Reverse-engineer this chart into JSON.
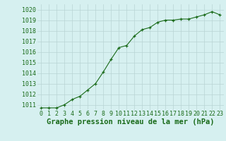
{
  "x": [
    0,
    1,
    2,
    3,
    4,
    5,
    6,
    7,
    8,
    9,
    10,
    11,
    12,
    13,
    14,
    15,
    16,
    17,
    18,
    19,
    20,
    21,
    22,
    23
  ],
  "y": [
    1010.7,
    1010.7,
    1010.7,
    1011.0,
    1011.5,
    1011.8,
    1012.4,
    1013.0,
    1014.1,
    1015.3,
    1016.4,
    1016.6,
    1017.5,
    1018.1,
    1018.3,
    1018.8,
    1019.0,
    1019.0,
    1019.1,
    1019.1,
    1019.3,
    1019.5,
    1019.8,
    1019.5
  ],
  "line_color": "#1a6b1a",
  "marker_color": "#1a6b1a",
  "bg_color": "#d6f0f0",
  "grid_color": "#b8d4d4",
  "xlabel": "Graphe pression niveau de la mer (hPa)",
  "xlabel_color": "#1a6b1a",
  "xlabel_fontsize": 7.5,
  "tick_label_color": "#1a6b1a",
  "tick_fontsize": 6.0,
  "ylim": [
    1010.5,
    1020.5
  ],
  "yticks": [
    1011,
    1012,
    1013,
    1014,
    1015,
    1016,
    1017,
    1018,
    1019,
    1020
  ],
  "xticks": [
    0,
    1,
    2,
    3,
    4,
    5,
    6,
    7,
    8,
    9,
    10,
    11,
    12,
    13,
    14,
    15,
    16,
    17,
    18,
    19,
    20,
    21,
    22,
    23
  ],
  "xlim": [
    -0.5,
    23.5
  ]
}
